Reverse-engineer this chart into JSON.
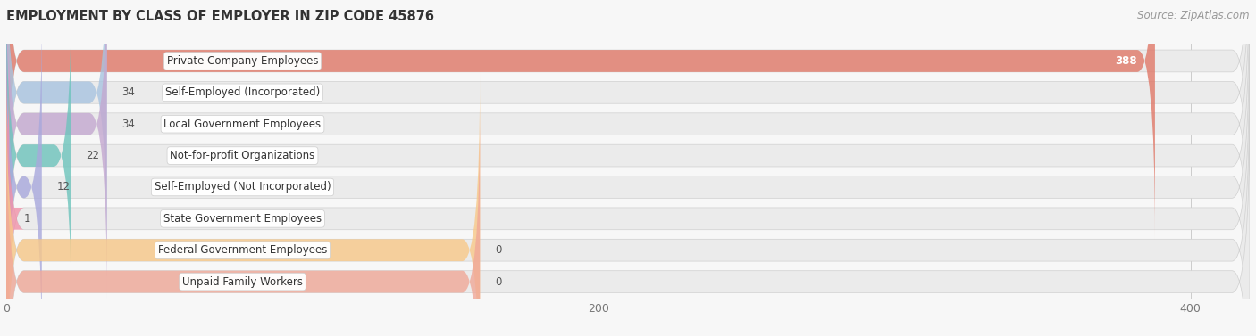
{
  "title": "EMPLOYMENT BY CLASS OF EMPLOYER IN ZIP CODE 45876",
  "source": "Source: ZipAtlas.com",
  "categories": [
    "Private Company Employees",
    "Self-Employed (Incorporated)",
    "Local Government Employees",
    "Not-for-profit Organizations",
    "Self-Employed (Not Incorporated)",
    "State Government Employees",
    "Federal Government Employees",
    "Unpaid Family Workers"
  ],
  "values": [
    388,
    34,
    34,
    22,
    12,
    1,
    0,
    0
  ],
  "bar_colors": [
    "#E07868",
    "#A8C4E0",
    "#C4A8D0",
    "#6DC4BC",
    "#A8A8DC",
    "#F090A8",
    "#F8C888",
    "#F0A898"
  ],
  "background_color": "#f7f7f7",
  "bar_bg_color": "#ebebeb",
  "xlim_max": 420,
  "xticks": [
    0,
    200,
    400
  ],
  "title_fontsize": 10.5,
  "source_fontsize": 8.5,
  "bar_label_fontsize": 8.5,
  "value_fontsize": 8.5,
  "tick_fontsize": 9
}
